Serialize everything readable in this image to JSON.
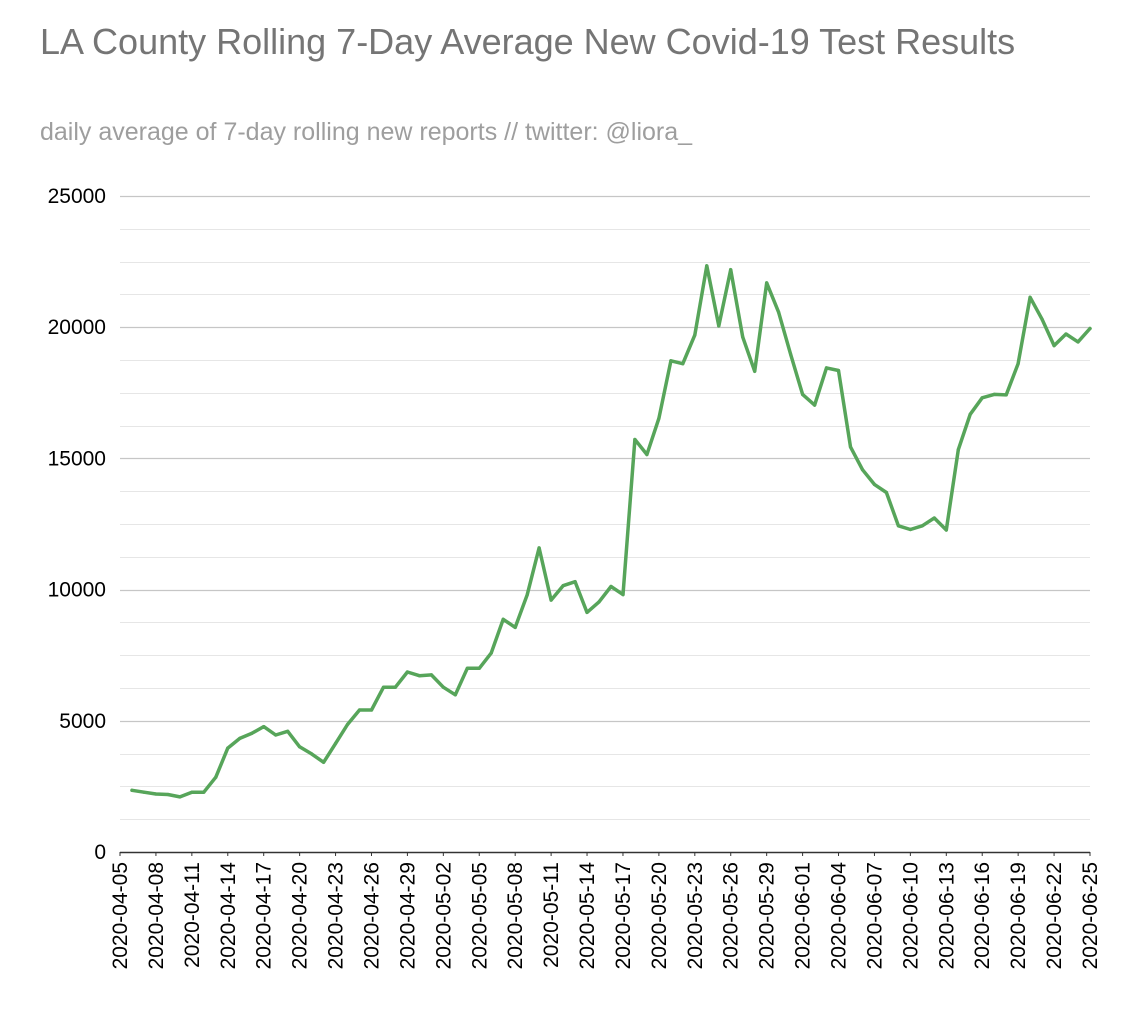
{
  "header": {
    "title": "LA County Rolling 7-Day Average New Covid-19 Test Results",
    "subtitle": "daily average of 7-day rolling new reports // twitter: @liora_"
  },
  "colors": {
    "series_line": "#57a55a",
    "major_grid": "#c6c6c6",
    "minor_grid": "#e6e6e6",
    "axis": "#333333"
  },
  "chart_data": {
    "type": "line",
    "title": "LA County Rolling 7-Day Average New Covid-19 Test Results",
    "subtitle": "daily average of 7-day rolling new reports // twitter: @liora_",
    "xlabel": "",
    "ylabel": "",
    "ylim": [
      0,
      25000
    ],
    "yticks": [
      "0",
      "5000",
      "10000",
      "15000",
      "20000",
      "25000"
    ],
    "minor_grid_step": 1250,
    "grid": true,
    "legend": "none",
    "xticks": [
      "2020-04-05",
      "2020-04-08",
      "2020-04-11",
      "2020-04-14",
      "2020-04-17",
      "2020-04-20",
      "2020-04-23",
      "2020-04-26",
      "2020-04-29",
      "2020-05-02",
      "2020-05-05",
      "2020-05-08",
      "2020-05-11",
      "2020-05-14",
      "2020-05-17",
      "2020-05-20",
      "2020-05-23",
      "2020-05-26",
      "2020-05-29",
      "2020-06-01",
      "2020-06-04",
      "2020-06-07",
      "2020-06-10",
      "2020-06-13",
      "2020-06-16",
      "2020-06-19",
      "2020-06-22",
      "2020-06-25"
    ],
    "x": [
      "2020-04-06",
      "2020-04-07",
      "2020-04-08",
      "2020-04-09",
      "2020-04-10",
      "2020-04-11",
      "2020-04-12",
      "2020-04-13",
      "2020-04-14",
      "2020-04-15",
      "2020-04-16",
      "2020-04-17",
      "2020-04-18",
      "2020-04-19",
      "2020-04-20",
      "2020-04-21",
      "2020-04-22",
      "2020-04-23",
      "2020-04-24",
      "2020-04-25",
      "2020-04-26",
      "2020-04-27",
      "2020-04-28",
      "2020-04-29",
      "2020-04-30",
      "2020-05-01",
      "2020-05-02",
      "2020-05-03",
      "2020-05-04",
      "2020-05-05",
      "2020-05-06",
      "2020-05-07",
      "2020-05-08",
      "2020-05-09",
      "2020-05-10",
      "2020-05-11",
      "2020-05-12",
      "2020-05-13",
      "2020-05-14",
      "2020-05-15",
      "2020-05-16",
      "2020-05-17",
      "2020-05-18",
      "2020-05-19",
      "2020-05-20",
      "2020-05-21",
      "2020-05-22",
      "2020-05-23",
      "2020-05-24",
      "2020-05-25",
      "2020-05-26",
      "2020-05-27",
      "2020-05-28",
      "2020-05-29",
      "2020-05-30",
      "2020-05-31",
      "2020-06-01",
      "2020-06-02",
      "2020-06-03",
      "2020-06-04",
      "2020-06-05",
      "2020-06-06",
      "2020-06-07",
      "2020-06-08",
      "2020-06-09",
      "2020-06-10",
      "2020-06-11",
      "2020-06-12",
      "2020-06-13",
      "2020-06-14",
      "2020-06-15",
      "2020-06-16",
      "2020-06-17",
      "2020-06-18",
      "2020-06-19",
      "2020-06-20",
      "2020-06-21",
      "2020-06-22",
      "2020-06-23",
      "2020-06-24",
      "2020-06-25"
    ],
    "series": [
      {
        "values": [
          2350,
          2280,
          2210,
          2190,
          2100,
          2280,
          2280,
          2850,
          3960,
          4330,
          4520,
          4780,
          4460,
          4600,
          4010,
          3740,
          3420,
          4140,
          4860,
          5410,
          5410,
          6280,
          6280,
          6860,
          6720,
          6750,
          6280,
          5990,
          7000,
          7000,
          7580,
          8870,
          8560,
          9800,
          11590,
          9600,
          10150,
          10300,
          9130,
          9530,
          10120,
          9810,
          15720,
          15150,
          16530,
          18720,
          18610,
          19700,
          22340,
          20050,
          22190,
          19630,
          18320,
          21690,
          20570,
          18970,
          17440,
          17030,
          18450,
          18350,
          15440,
          14570,
          14010,
          13700,
          12430,
          12290,
          12430,
          12730,
          12270,
          15330,
          16680,
          17310,
          17440,
          17420,
          18610,
          21140,
          20300,
          19300,
          19740,
          19440,
          19950
        ]
      }
    ]
  }
}
